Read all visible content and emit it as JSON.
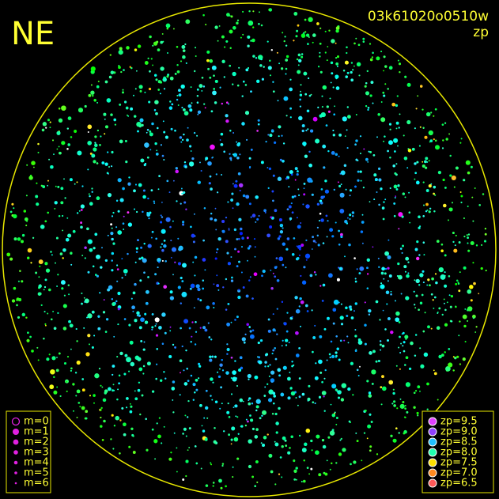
{
  "header": {
    "corner": "NE",
    "frame_id": "03k61020o0510w",
    "mode": "zp"
  },
  "legends": {
    "magnitude": [
      "m=0",
      "m=1",
      "m=2",
      "m=3",
      "m=4",
      "m=5",
      "m=6"
    ],
    "zp": [
      "zp=9.5",
      "zp=9.0",
      "zp=8.5",
      "zp=8.0",
      "zp=7.5",
      "zp=7.0",
      "zp=6.5"
    ]
  }
}
